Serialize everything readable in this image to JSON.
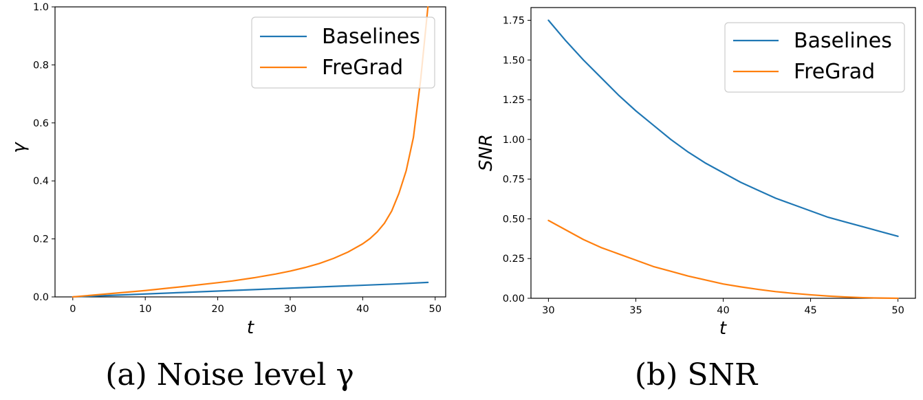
{
  "figures": [
    {
      "caption": "(a) Noise level γ",
      "legend": [
        "Baselines",
        "FreGrad"
      ]
    },
    {
      "caption": "(b) SNR",
      "legend": [
        "Baselines",
        "FreGrad"
      ]
    }
  ],
  "colors": {
    "baselines": "#1f77b4",
    "fregrad": "#ff7f0e"
  },
  "chart_data": [
    {
      "type": "line",
      "title": "",
      "xlabel": "t",
      "ylabel": "γ",
      "xlim": [
        -2.45,
        51.45
      ],
      "ylim": [
        0,
        1.0
      ],
      "xticks": [
        0,
        10,
        20,
        30,
        40,
        50
      ],
      "xtick_labels": [
        "0",
        "10",
        "20",
        "30",
        "40",
        "50"
      ],
      "yticks": [
        0,
        0.2,
        0.4,
        0.6,
        0.8,
        1.0
      ],
      "ytick_labels": [
        "0.0",
        "0.2",
        "0.4",
        "0.6",
        "0.8",
        "1.0"
      ],
      "grid": false,
      "legend_position": "top-right",
      "series": [
        {
          "name": "Baselines",
          "color": "#1f77b4",
          "x": [
            0,
            5,
            10,
            15,
            20,
            25,
            30,
            35,
            40,
            45,
            49
          ],
          "y": [
            0.0001,
            0.0051,
            0.0101,
            0.0151,
            0.0202,
            0.0252,
            0.0302,
            0.0352,
            0.0402,
            0.0452,
            0.05
          ]
        },
        {
          "name": "FreGrad",
          "color": "#ff7f0e",
          "x": [
            0,
            5,
            10,
            15,
            20,
            22,
            25,
            28,
            30,
            32,
            34,
            36,
            38,
            40,
            41,
            42,
            43,
            44,
            45,
            46,
            47,
            48,
            49
          ],
          "y": [
            0.0,
            0.011,
            0.022,
            0.035,
            0.049,
            0.055,
            0.066,
            0.079,
            0.089,
            0.101,
            0.115,
            0.133,
            0.155,
            0.183,
            0.201,
            0.224,
            0.254,
            0.296,
            0.357,
            0.435,
            0.55,
            0.75,
            1.0
          ]
        }
      ]
    },
    {
      "type": "line",
      "title": "",
      "xlabel": "t",
      "ylabel": "SNR",
      "xlim": [
        29.0,
        51.0
      ],
      "ylim": [
        0,
        1.83
      ],
      "xticks": [
        30,
        35,
        40,
        45,
        50
      ],
      "xtick_labels": [
        "30",
        "35",
        "40",
        "45",
        "50"
      ],
      "yticks": [
        0,
        0.25,
        0.5,
        0.75,
        1.0,
        1.25,
        1.5,
        1.75
      ],
      "ytick_labels": [
        "0.00",
        "0.25",
        "0.50",
        "0.75",
        "1.00",
        "1.25",
        "1.50",
        "1.75"
      ],
      "grid": false,
      "legend_position": "top-right",
      "series": [
        {
          "name": "Baselines",
          "color": "#1f77b4",
          "x": [
            30,
            31,
            32,
            33,
            34,
            35,
            36,
            37,
            38,
            39,
            40,
            41,
            42,
            43,
            44,
            45,
            46,
            47,
            48,
            49,
            50
          ],
          "y": [
            1.75,
            1.62,
            1.5,
            1.39,
            1.28,
            1.18,
            1.09,
            1.0,
            0.92,
            0.85,
            0.79,
            0.73,
            0.68,
            0.63,
            0.59,
            0.55,
            0.51,
            0.48,
            0.45,
            0.42,
            0.39
          ]
        },
        {
          "name": "FreGrad",
          "color": "#ff7f0e",
          "x": [
            30,
            31,
            32,
            33,
            34,
            35,
            36,
            37,
            38,
            39,
            40,
            41,
            42,
            43,
            44,
            45,
            46,
            47,
            48,
            49,
            50
          ],
          "y": [
            0.49,
            0.43,
            0.37,
            0.32,
            0.28,
            0.24,
            0.2,
            0.17,
            0.14,
            0.115,
            0.09,
            0.072,
            0.056,
            0.042,
            0.031,
            0.022,
            0.014,
            0.008,
            0.004,
            0.0015,
            0.0
          ]
        }
      ]
    }
  ]
}
